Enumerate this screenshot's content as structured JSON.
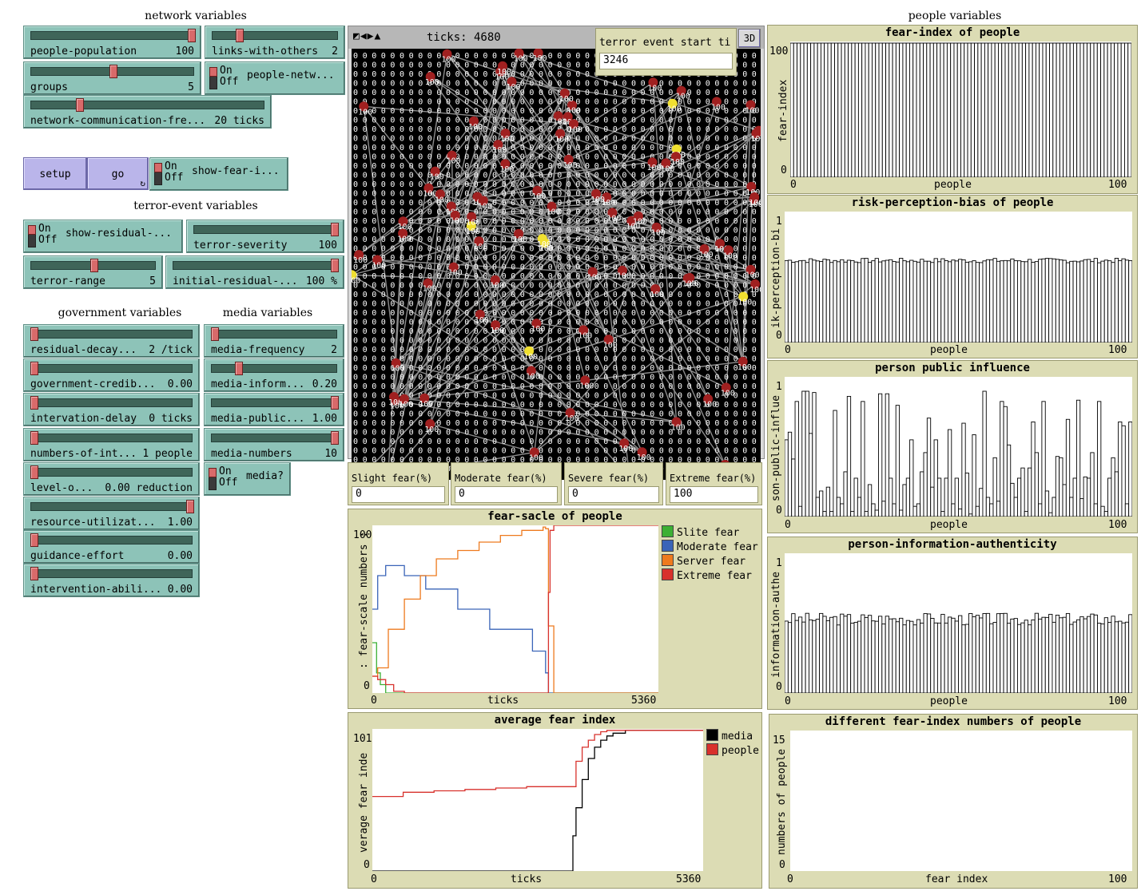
{
  "sections": {
    "network": "network variables",
    "terror": "terror-event variables",
    "government": "government variables",
    "media": "media variables",
    "people": "people variables"
  },
  "sliders": {
    "people_population": {
      "label": "people-population",
      "value": "100",
      "fraction": 1.0
    },
    "links_with_others": {
      "label": "links-with-others",
      "value": "2",
      "fraction": 0.2
    },
    "groups": {
      "label": "groups",
      "value": "5",
      "fraction": 0.5
    },
    "network_comm": {
      "label": "network-communication-fre...",
      "value": "20 ticks",
      "fraction": 0.2
    },
    "terror_severity": {
      "label": "terror-severity",
      "value": "100",
      "fraction": 1.0
    },
    "terror_range": {
      "label": "terror-range",
      "value": "5",
      "fraction": 0.5
    },
    "initial_residual": {
      "label": "initial-residual-...",
      "value": "100 %",
      "fraction": 1.0
    },
    "residual_decay": {
      "label": "residual-decay...",
      "value": "2 /tick",
      "fraction": 0.0
    },
    "government_credib": {
      "label": "government-credib...",
      "value": "0.00",
      "fraction": 0.0
    },
    "intervention_delay": {
      "label": "intervation-delay",
      "value": "0 ticks",
      "fraction": 0.0
    },
    "numbers_of_int": {
      "label": "numbers-of-int...",
      "value": "1 people",
      "fraction": 0.0
    },
    "level_o": {
      "label": "level-o...",
      "value": "0.00 reduction",
      "fraction": 0.0
    },
    "resource_util": {
      "label": "resource-utilizat...",
      "value": "1.00",
      "fraction": 1.0
    },
    "guidance_effort": {
      "label": "guidance-effort",
      "value": "0.00",
      "fraction": 0.0
    },
    "intervention_abili": {
      "label": "intervention-abili...",
      "value": "0.00",
      "fraction": 0.0
    },
    "media_frequency": {
      "label": "media-frequency",
      "value": "2",
      "fraction": 0.0
    },
    "media_inform": {
      "label": "media-inform...",
      "value": "0.20",
      "fraction": 0.2
    },
    "media_public": {
      "label": "media-public...",
      "value": "1.00",
      "fraction": 1.0
    },
    "media_numbers": {
      "label": "media-numbers",
      "value": "10",
      "fraction": 1.0
    }
  },
  "switches": {
    "people_netw": {
      "label": "people-netw...",
      "on": "On",
      "off": "Off"
    },
    "show_fear": {
      "label": "show-fear-i...",
      "on": "On",
      "off": "Off"
    },
    "show_residual": {
      "label": "show-residual-...",
      "on": "On",
      "off": "Off"
    },
    "media_q": {
      "label": "media?",
      "on": "On",
      "off": "Off"
    }
  },
  "buttons": {
    "setup": "setup",
    "go": "go",
    "go_icon": "forever-icon",
    "three_d": "3D"
  },
  "view": {
    "ticks_label": "ticks: 4680",
    "controls_icon": "view-controls-icon"
  },
  "monitors": {
    "terror_start": {
      "label": "terror event start ti",
      "value": "3246"
    },
    "slight": {
      "label": "Slight fear(%)",
      "value": "0"
    },
    "moderate": {
      "label": "Moderate fear(%)",
      "value": "0"
    },
    "severe": {
      "label": "Severe fear(%)",
      "value": "0"
    },
    "extreme": {
      "label": "Extreme fear(%)",
      "value": "100"
    }
  },
  "plots": {
    "fear_index": {
      "title": "fear-index of people",
      "ylabel": "fear-index",
      "xlabel": "people",
      "xmin": "0",
      "xmax": "100",
      "ymin": "0",
      "ymax": "100"
    },
    "risk_bias": {
      "title": "risk-perception-bias of people",
      "ylabel": "ik-perception-bi",
      "xlabel": "people",
      "xmin": "0",
      "xmax": "100",
      "ymin": "0",
      "ymax": "1"
    },
    "influence": {
      "title": "person public influence",
      "ylabel": "son-public-influe",
      "xlabel": "people",
      "xmin": "0",
      "xmax": "100",
      "ymin": "0",
      "ymax": "1"
    },
    "authenticity": {
      "title": "person-information-authenticity",
      "ylabel": "information-authe",
      "xlabel": "people",
      "xmin": "0",
      "xmax": "100",
      "ymin": "0",
      "ymax": "1"
    },
    "diff_fear": {
      "title": "different fear-index numbers of people",
      "ylabel": "numbers of people",
      "xlabel": "fear index",
      "xmin": "0",
      "xmax": "100",
      "ymin": "0",
      "ymax": "15"
    },
    "fear_scale": {
      "title": "fear-sacle of people",
      "ylabel": ": fear-scale numbers :",
      "xlabel": "ticks",
      "xmin": "0",
      "xmax": "5360",
      "ymin": "0",
      "ymax": "100"
    },
    "avg_fear": {
      "title": "average fear index",
      "ylabel": "verage fear inde",
      "xlabel": "ticks",
      "xmin": "0",
      "xmax": "5360",
      "ymin": "0",
      "ymax": "101"
    }
  },
  "legends": {
    "fear_scale": [
      {
        "name": "Slite fear",
        "color": "#3cb034"
      },
      {
        "name": "Moderate fear",
        "color": "#3a64b8"
      },
      {
        "name": "Server fear",
        "color": "#ee7a1e"
      },
      {
        "name": "Extreme fear",
        "color": "#d8312c"
      }
    ],
    "avg_fear": [
      {
        "name": "media",
        "color": "#000000"
      },
      {
        "name": "people",
        "color": "#d8312c"
      }
    ]
  },
  "chart_data": [
    {
      "type": "bar",
      "title": "fear-index of people",
      "xlabel": "people",
      "ylabel": "fear-index",
      "xlim": [
        0,
        100
      ],
      "ylim": [
        0,
        100
      ],
      "bar_count": 100,
      "value_each": 100
    },
    {
      "type": "bar",
      "title": "risk-perception-bias of people",
      "xlabel": "people",
      "ylabel": "ik-perception-bi",
      "xlim": [
        0,
        100
      ],
      "ylim": [
        0,
        1
      ],
      "bar_count": 100,
      "approx_value": 0.71
    },
    {
      "type": "bar",
      "title": "person public influence",
      "xlabel": "people",
      "ylabel": "son-public-influe",
      "xlim": [
        0,
        100
      ],
      "ylim": [
        0,
        1
      ],
      "values": [
        0.6,
        0.66,
        0.45,
        0.9,
        0.08,
        0.98,
        0.98,
        0.65,
        0.97,
        0.15,
        0.2,
        0.04,
        0.23,
        0.04,
        0.83,
        0.15,
        0.1,
        0.35,
        0.94,
        0.04,
        0.3,
        0.15,
        0.9,
        0.04,
        0.25,
        0.1,
        0.05,
        0.96,
        0.12,
        0.96,
        0.3,
        0.1,
        0.87,
        0.05,
        0.25,
        0.3,
        0.6,
        0.08,
        0.1,
        0.35,
        0.5,
        0.77,
        0.23,
        0.6,
        0.3,
        0.04,
        0.3,
        0.68,
        0.1,
        0.3,
        0.06,
        0.73,
        0.34,
        0.02,
        0.64,
        0.08,
        0.22,
        0.98,
        0.15,
        0.1,
        0.46,
        0.12,
        0.9,
        0.86,
        0.56,
        0.26,
        0.15,
        0.3,
        0.38,
        0.04,
        0.38,
        0.74,
        0.5,
        0.1,
        0.9,
        0.2,
        0.03,
        0.15,
        0.47,
        0.46,
        0.25,
        0.76,
        0.15,
        0.3,
        0.91,
        0.14,
        0.31,
        0.3,
        0.5,
        0.1,
        0.9,
        0.08,
        0.04,
        0.3,
        0.46,
        0.35,
        0.74,
        0.71,
        0.1,
        0.74
      ]
    },
    {
      "type": "bar",
      "title": "person-information-authenticity",
      "xlabel": "people",
      "ylabel": "information-authe",
      "xlim": [
        0,
        100
      ],
      "ylim": [
        0,
        1
      ],
      "bar_count": 100,
      "approx_value": 0.6
    },
    {
      "type": "bar",
      "title": "different fear-index numbers of people",
      "xlabel": "fear index",
      "ylabel": "numbers of people",
      "xlim": [
        0,
        100
      ],
      "ylim": [
        0,
        15
      ],
      "values": []
    },
    {
      "type": "line",
      "title": "fear-sacle of people",
      "xlabel": "ticks",
      "ylabel": ": fear-scale numbers :",
      "xlim": [
        0,
        5360
      ],
      "ylim": [
        0,
        100
      ],
      "series": [
        {
          "name": "Slite fear",
          "x": [
            0,
            80,
            150,
            250,
            1500,
            5360
          ],
          "y": [
            30,
            12,
            5,
            0,
            0,
            0
          ]
        },
        {
          "name": "Moderate fear",
          "x": [
            0,
            100,
            250,
            600,
            1000,
            1600,
            2200,
            3000,
            3246,
            3300,
            5360
          ],
          "y": [
            50,
            70,
            76,
            70,
            62,
            50,
            38,
            25,
            12,
            0,
            0
          ]
        },
        {
          "name": "Server fear",
          "x": [
            0,
            100,
            300,
            600,
            900,
            1200,
            1600,
            2000,
            2400,
            2800,
            3200,
            3246,
            3300,
            3400,
            5360
          ],
          "y": [
            10,
            15,
            38,
            56,
            70,
            80,
            85,
            90,
            94,
            97,
            99,
            98,
            40,
            0,
            0
          ]
        },
        {
          "name": "Extreme fear",
          "x": [
            0,
            100,
            250,
            400,
            600,
            3246,
            3300,
            3330,
            3400,
            5360
          ],
          "y": [
            10,
            8,
            5,
            1,
            0,
            0,
            60,
            97,
            100,
            100
          ]
        }
      ]
    },
    {
      "type": "line",
      "title": "average fear index",
      "xlabel": "ticks",
      "ylabel": "verage fear inde",
      "xlim": [
        0,
        5360
      ],
      "ylim": [
        0,
        101
      ],
      "series": [
        {
          "name": "media",
          "x": [
            0,
            3246,
            3250,
            3300,
            3400,
            3500,
            3600,
            3700,
            3800,
            3900,
            4100,
            5360
          ],
          "y": [
            0,
            0,
            25,
            45,
            65,
            80,
            88,
            93,
            96,
            98,
            100,
            100
          ]
        },
        {
          "name": "people",
          "x": [
            0,
            500,
            1000,
            1500,
            2000,
            2500,
            3000,
            3246,
            3300,
            3400,
            3500,
            3600,
            3700,
            3800,
            4100,
            5360
          ],
          "y": [
            53,
            56,
            57,
            58,
            59,
            60,
            60,
            60,
            78,
            88,
            93,
            97,
            99,
            100,
            100,
            100
          ]
        }
      ]
    }
  ],
  "colors": {
    "slider_bg": "#8dc3b8",
    "button_bg": "#bab5ea",
    "plot_bg": "#dcdcb4",
    "view_bg": "#000000"
  }
}
